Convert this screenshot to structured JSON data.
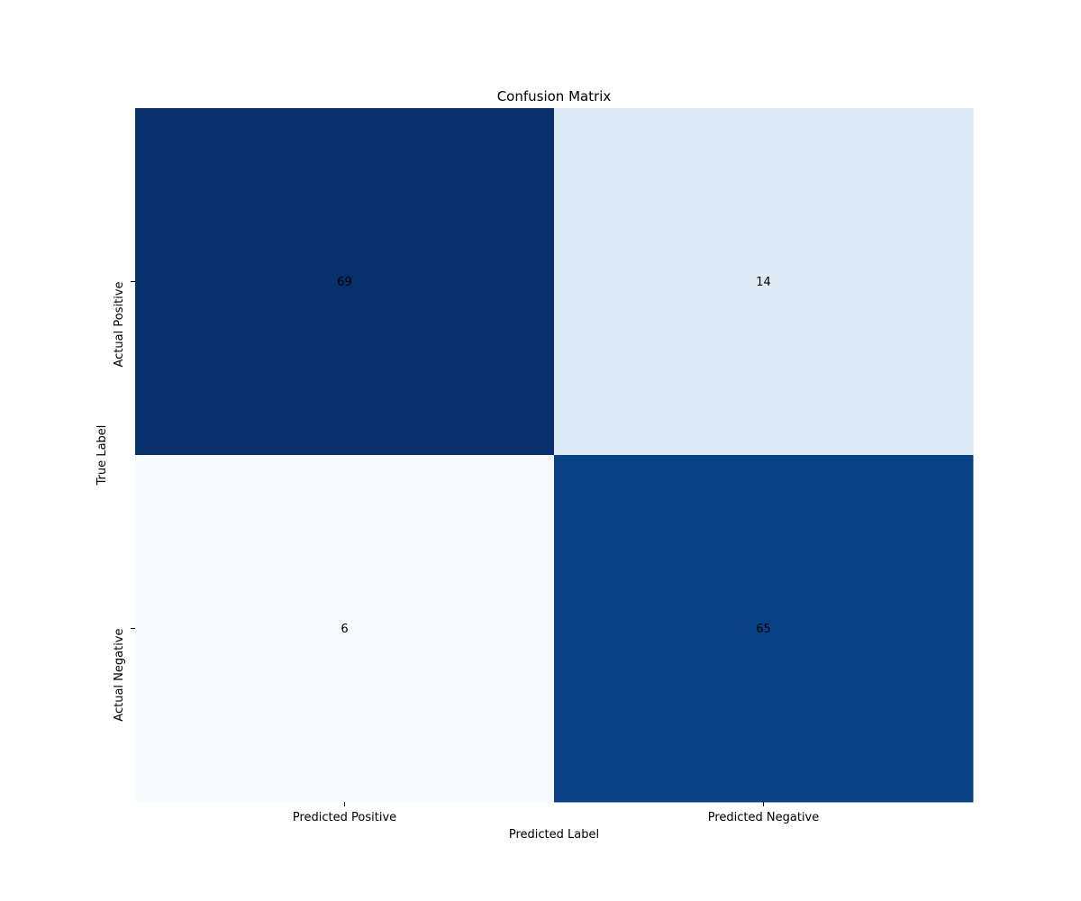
{
  "chart_data": {
    "type": "heatmap",
    "title": "Confusion Matrix",
    "xlabel": "Predicted Label",
    "ylabel": "True Label",
    "x_categories": [
      "Predicted Positive",
      "Predicted Negative"
    ],
    "y_categories": [
      "Actual Positive",
      "Actual Negative"
    ],
    "values": [
      [
        69,
        14
      ],
      [
        6,
        65
      ]
    ],
    "colormap": "Blues",
    "color_range": [
      6,
      69
    ],
    "colorbar": false,
    "grid": false
  }
}
